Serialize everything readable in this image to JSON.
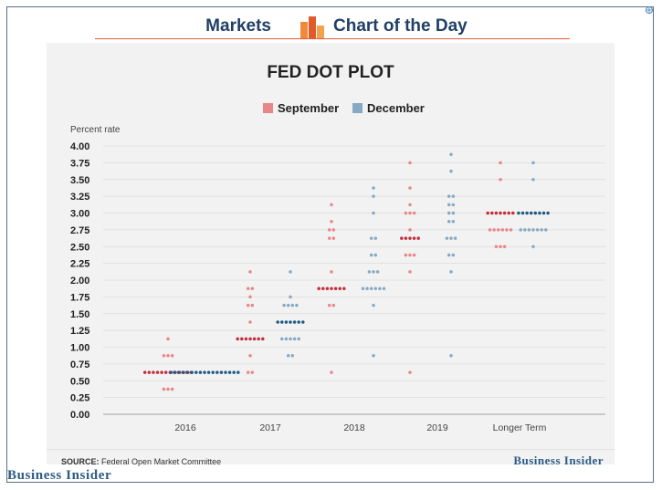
{
  "header": {
    "left_label": "Markets",
    "right_label": "Chart of the Day",
    "logo_icon": "bar-chart-logo-icon",
    "accent": "#e05a3a"
  },
  "brand": {
    "card_logo": "Business Insider",
    "page_logo": "Business Insider",
    "color": "#2c5a86"
  },
  "source": {
    "prefix": "SOURCE:",
    "text": "Federal Open Market Committee"
  },
  "chart_data": {
    "type": "scatter",
    "title": "FED DOT PLOT",
    "ylabel": "Percent rate",
    "xlabel": "",
    "ylim": [
      0,
      4
    ],
    "yticks": [
      "0.00",
      "0.25",
      "0.50",
      "0.75",
      "1.00",
      "1.25",
      "1.50",
      "1.75",
      "2.00",
      "2.25",
      "2.50",
      "2.75",
      "3.00",
      "3.25",
      "3.50",
      "3.75",
      "4.00"
    ],
    "categories": [
      "2016",
      "2017",
      "2018",
      "2019",
      "Longer Term"
    ],
    "legend_position": "top-center",
    "grid": true,
    "colors": {
      "september": "#e8878a",
      "september_median": "#c62b3a",
      "december": "#86aac4",
      "december_median": "#1f5a85"
    },
    "series": [
      {
        "name": "September",
        "dots": [
          [
            [
              1.125,
              1
            ],
            [
              0.875,
              3
            ],
            [
              0.625,
              12
            ],
            [
              0.375,
              3
            ]
          ],
          [
            [
              2.125,
              1
            ],
            [
              1.875,
              2
            ],
            [
              1.75,
              1
            ],
            [
              1.625,
              2
            ],
            [
              1.375,
              1
            ],
            [
              1.125,
              7
            ],
            [
              0.875,
              1
            ],
            [
              0.625,
              2
            ]
          ],
          [
            [
              3.125,
              1
            ],
            [
              2.875,
              1
            ],
            [
              2.75,
              2
            ],
            [
              2.625,
              2
            ],
            [
              2.125,
              1
            ],
            [
              1.875,
              7
            ],
            [
              1.625,
              2
            ],
            [
              0.625,
              1
            ]
          ],
          [
            [
              3.75,
              1
            ],
            [
              3.375,
              1
            ],
            [
              3.125,
              1
            ],
            [
              3.0,
              3
            ],
            [
              2.75,
              1
            ],
            [
              2.625,
              5
            ],
            [
              2.375,
              3
            ],
            [
              2.125,
              1
            ],
            [
              0.625,
              1
            ]
          ],
          [
            [
              3.75,
              1
            ],
            [
              3.5,
              1
            ],
            [
              3.0,
              7
            ],
            [
              2.75,
              6
            ],
            [
              2.5,
              3
            ]
          ]
        ],
        "median_counts": [
          12,
          7,
          7,
          5,
          7
        ]
      },
      {
        "name": "December",
        "dots": [
          [
            [
              0.625,
              17
            ]
          ],
          [
            [
              2.125,
              1
            ],
            [
              1.75,
              1
            ],
            [
              1.625,
              4
            ],
            [
              1.375,
              7
            ],
            [
              1.125,
              5
            ],
            [
              0.875,
              2
            ]
          ],
          [
            [
              3.375,
              1
            ],
            [
              3.25,
              1
            ],
            [
              3.0,
              1
            ],
            [
              2.625,
              2
            ],
            [
              2.375,
              2
            ],
            [
              2.125,
              3
            ],
            [
              1.875,
              6
            ],
            [
              1.625,
              1
            ],
            [
              0.875,
              1
            ]
          ],
          [
            [
              3.875,
              1
            ],
            [
              3.625,
              1
            ],
            [
              3.25,
              2
            ],
            [
              3.125,
              2
            ],
            [
              3.0,
              2
            ],
            [
              2.875,
              2
            ],
            [
              2.625,
              3
            ],
            [
              2.375,
              2
            ],
            [
              2.125,
              1
            ],
            [
              0.875,
              1
            ]
          ],
          [
            [
              3.75,
              1
            ],
            [
              3.5,
              1
            ],
            [
              3.0,
              8
            ],
            [
              2.75,
              7
            ],
            [
              2.5,
              1
            ]
          ]
        ],
        "median_counts": [
          17,
          7,
          3,
          2,
          8
        ]
      }
    ]
  }
}
